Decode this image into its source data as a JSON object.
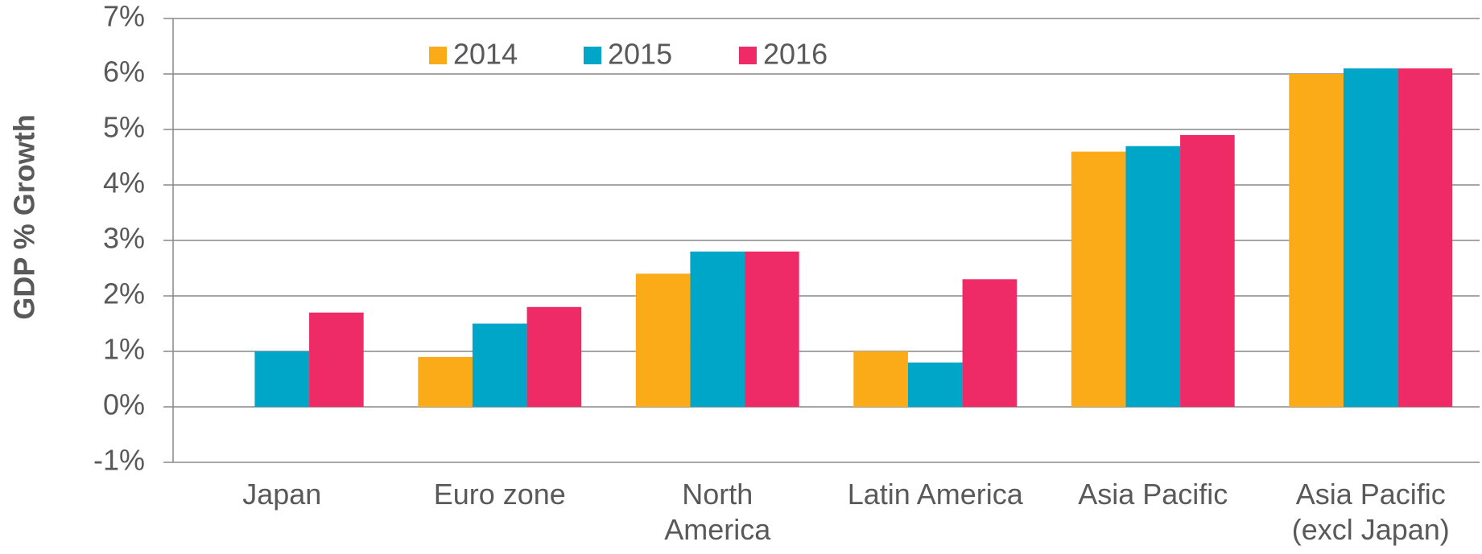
{
  "chart_data": {
    "type": "bar",
    "y_label": "GDP % Growth",
    "categories": [
      "Japan",
      "Euro zone",
      "North\nAmerica",
      "Latin America",
      "Asia Pacific",
      "Asia Pacific\n(excl Japan)"
    ],
    "series": [
      {
        "name": "2014",
        "color": "#FBAB18",
        "values": [
          0,
          0.9,
          2.4,
          1.0,
          4.6,
          6.0
        ]
      },
      {
        "name": "2015",
        "color": "#00A6C8",
        "values": [
          1.0,
          1.5,
          2.8,
          0.8,
          4.7,
          6.1
        ]
      },
      {
        "name": "2016",
        "color": "#EE2B67",
        "values": [
          1.7,
          1.8,
          2.8,
          2.3,
          4.9,
          6.1
        ]
      }
    ],
    "ylim": [
      -1,
      7
    ],
    "yticks": [
      {
        "value": -1,
        "label": "-1%"
      },
      {
        "value": 0,
        "label": "0%"
      },
      {
        "value": 1,
        "label": "1%"
      },
      {
        "value": 2,
        "label": "2%"
      },
      {
        "value": 3,
        "label": "3%"
      },
      {
        "value": 4,
        "label": "4%"
      },
      {
        "value": 5,
        "label": "5%"
      },
      {
        "value": 6,
        "label": "6%"
      },
      {
        "value": 7,
        "label": "7%"
      }
    ],
    "grid": true
  }
}
